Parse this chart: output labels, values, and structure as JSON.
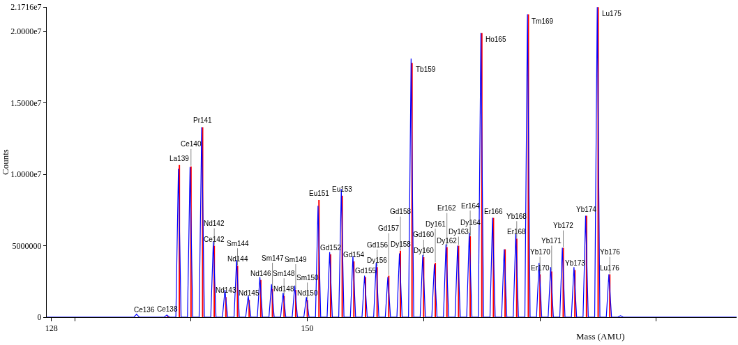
{
  "chart_data": {
    "type": "line",
    "xlabel": "Mass (AMU)",
    "ylabel": "Counts",
    "xlim": [
      127.6,
      186.9
    ],
    "xticks": [
      128,
      {
        "value": 130,
        "label": null
      },
      {
        "value": 140,
        "label": null
      },
      150,
      {
        "value": 160,
        "label": null
      },
      {
        "value": 170,
        "label": null
      },
      {
        "value": 180,
        "label": null
      }
    ],
    "ylim": [
      0,
      21716000
    ],
    "yticks": [
      0,
      5000000,
      {
        "value": 10000000,
        "label": "1.0000e7"
      },
      {
        "value": 15000000,
        "label": "1.5000e7"
      },
      {
        "value": 20000000,
        "label": "2.0000e7"
      },
      {
        "value": 21716000,
        "label": "2.1716e7"
      }
    ],
    "grid": false,
    "marker": "none",
    "line_style": "solid",
    "series": [
      {
        "color": "#0000ff",
        "x": [
          127.6,
          135.1,
          135.32,
          135.55,
          137.7,
          137.92,
          138.15,
          138.7,
          138.92,
          139.15,
          139.7,
          139.92,
          140.15,
          140.7,
          140.92,
          141.15,
          141.7,
          141.92,
          142.15,
          142.7,
          142.92,
          143.15,
          143.7,
          143.92,
          144.15,
          144.7,
          144.92,
          145.15,
          145.7,
          145.92,
          146.15,
          146.7,
          146.92,
          147.15,
          147.7,
          147.92,
          148.15,
          148.7,
          148.92,
          149.15,
          149.7,
          149.92,
          150.15,
          150.7,
          150.92,
          151.15,
          151.7,
          151.92,
          152.15,
          152.7,
          152.92,
          153.15,
          153.7,
          153.92,
          154.15,
          154.7,
          154.92,
          155.15,
          155.7,
          155.92,
          156.15,
          156.7,
          156.92,
          157.15,
          157.7,
          157.92,
          158.15,
          158.7,
          158.92,
          159.15,
          159.7,
          159.92,
          160.15,
          160.7,
          160.92,
          161.15,
          161.7,
          161.92,
          162.15,
          162.7,
          162.92,
          163.15,
          163.7,
          163.92,
          164.15,
          164.7,
          164.92,
          165.15,
          165.7,
          165.92,
          166.15,
          166.7,
          166.92,
          167.15,
          167.7,
          167.92,
          168.15,
          168.7,
          168.92,
          169.15,
          169.7,
          169.92,
          170.15,
          170.7,
          170.92,
          171.15,
          171.7,
          171.92,
          172.15,
          172.7,
          172.92,
          173.15,
          173.7,
          173.92,
          174.15,
          174.7,
          174.92,
          175.15,
          175.7,
          175.92,
          176.15,
          176.7,
          176.92,
          177.15,
          186.9
        ],
        "values": [
          0,
          0,
          200000,
          0,
          0,
          150000,
          0,
          0,
          10400000,
          0,
          0,
          10500000,
          0,
          0,
          13300000,
          0,
          0,
          5300000,
          0,
          0,
          1900000,
          0,
          0,
          4000000,
          0,
          0,
          1500000,
          0,
          0,
          2800000,
          0,
          0,
          2300000,
          0,
          0,
          1700000,
          0,
          0,
          2200000,
          0,
          0,
          1400000,
          0,
          0,
          7800000,
          0,
          0,
          4550000,
          0,
          0,
          8970000,
          0,
          0,
          4270000,
          0,
          0,
          2900000,
          0,
          0,
          3800000,
          0,
          0,
          2800000,
          0,
          0,
          4460000,
          0,
          0,
          18100000,
          0,
          0,
          4360000,
          0,
          0,
          3700000,
          0,
          0,
          5100000,
          0,
          0,
          5000000,
          0,
          0,
          5900000,
          0,
          0,
          19900000,
          0,
          0,
          6950000,
          0,
          0,
          4750000,
          0,
          0,
          5850000,
          0,
          0,
          21200000,
          0,
          0,
          3800000,
          0,
          0,
          3500000,
          0,
          0,
          4850000,
          0,
          0,
          3500000,
          0,
          0,
          7100000,
          0,
          0,
          21700000,
          0,
          0,
          3000000,
          0,
          0,
          100000,
          0,
          0
        ]
      },
      {
        "type": "bar",
        "color": "#ff0000",
        "x": [
          138,
          139,
          140,
          141,
          142,
          143,
          144,
          145,
          146,
          147,
          148,
          149,
          150,
          151,
          152,
          153,
          154,
          155,
          156,
          157,
          158,
          159,
          160,
          161,
          162,
          163,
          164,
          165,
          166,
          167,
          168,
          169,
          170,
          171,
          172,
          173,
          174,
          175,
          176
        ],
        "values": [
          100000,
          10650000,
          10550000,
          13300000,
          5000000,
          1400000,
          3600000,
          1200000,
          2600000,
          2000000,
          1500000,
          1900000,
          1200000,
          8200000,
          4400000,
          8500000,
          3900000,
          2800000,
          3500000,
          2900000,
          4650000,
          17800000,
          4200000,
          3800000,
          4900000,
          5000000,
          5660000,
          19900000,
          6950000,
          4750000,
          5500000,
          21200000,
          3000000,
          3200000,
          4850000,
          3300000,
          7100000,
          21700000,
          3000000
        ]
      }
    ],
    "annotations": [
      {
        "text": "Ce136",
        "x": 136,
        "y": 50000
      },
      {
        "text": "Ce138",
        "x": 138,
        "y": 100000
      },
      {
        "text": "La139",
        "x": 139,
        "y": 10650000
      },
      {
        "text": "Ce140",
        "x": 140,
        "y": 10550000
      },
      {
        "text": "Pr141",
        "x": 141,
        "y": 13300000
      },
      {
        "text": "Ce142",
        "x": 142,
        "y": 5000000
      },
      {
        "text": "Nd142",
        "x": 142,
        "y": 5000000
      },
      {
        "text": "Nd143",
        "x": 143,
        "y": 1400000
      },
      {
        "text": "Nd144",
        "x": 144,
        "y": 3600000
      },
      {
        "text": "Sm144",
        "x": 144,
        "y": 3600000
      },
      {
        "text": "Nd145",
        "x": 145,
        "y": 1200000
      },
      {
        "text": "Nd146",
        "x": 146,
        "y": 2600000
      },
      {
        "text": "Sm147",
        "x": 147,
        "y": 2000000
      },
      {
        "text": "Nd148",
        "x": 148,
        "y": 1500000
      },
      {
        "text": "Sm148",
        "x": 148,
        "y": 1500000
      },
      {
        "text": "Sm149",
        "x": 149,
        "y": 1900000
      },
      {
        "text": "Nd150",
        "x": 150,
        "y": 1200000
      },
      {
        "text": "Sm150",
        "x": 150,
        "y": 1200000
      },
      {
        "text": "Eu151",
        "x": 151,
        "y": 8200000
      },
      {
        "text": "Gd152",
        "x": 152,
        "y": 4400000
      },
      {
        "text": "Eu153",
        "x": 153,
        "y": 8500000
      },
      {
        "text": "Gd154",
        "x": 154,
        "y": 3900000
      },
      {
        "text": "Gd155",
        "x": 155,
        "y": 2800000
      },
      {
        "text": "Dy156",
        "x": 156,
        "y": 3500000
      },
      {
        "text": "Gd156",
        "x": 156,
        "y": 3500000
      },
      {
        "text": "Gd157",
        "x": 157,
        "y": 2900000
      },
      {
        "text": "Dy158",
        "x": 158,
        "y": 4650000
      },
      {
        "text": "Gd158",
        "x": 158,
        "y": 4650000
      },
      {
        "text": "Tb159",
        "x": 159,
        "y": 17800000
      },
      {
        "text": "Dy160",
        "x": 160,
        "y": 4200000
      },
      {
        "text": "Gd160",
        "x": 160,
        "y": 4200000
      },
      {
        "text": "Dy161",
        "x": 161,
        "y": 3800000
      },
      {
        "text": "Dy162",
        "x": 162,
        "y": 4900000
      },
      {
        "text": "Er162",
        "x": 162,
        "y": 4900000
      },
      {
        "text": "Dy163",
        "x": 163,
        "y": 5000000
      },
      {
        "text": "Dy164",
        "x": 164,
        "y": 5660000
      },
      {
        "text": "Er164",
        "x": 164,
        "y": 5660000
      },
      {
        "text": "Ho165",
        "x": 165,
        "y": 19900000
      },
      {
        "text": "Er166",
        "x": 166,
        "y": 6950000
      },
      {
        "text": "Er168",
        "x": 168,
        "y": 5500000
      },
      {
        "text": "Yb168",
        "x": 168,
        "y": 5500000
      },
      {
        "text": "Tm169",
        "x": 169,
        "y": 21200000
      },
      {
        "text": "Er170",
        "x": 170,
        "y": 3000000
      },
      {
        "text": "Yb170",
        "x": 170,
        "y": 3000000
      },
      {
        "text": "Yb171",
        "x": 171,
        "y": 3200000
      },
      {
        "text": "Yb172",
        "x": 172,
        "y": 4850000
      },
      {
        "text": "Yb173",
        "x": 173,
        "y": 3300000
      },
      {
        "text": "Yb174",
        "x": 174,
        "y": 7100000
      },
      {
        "text": "Lu175",
        "x": 175,
        "y": 21700000
      },
      {
        "text": "Lu176",
        "x": 176,
        "y": 3000000
      },
      {
        "text": "Yb176",
        "x": 176,
        "y": 3000000
      }
    ]
  }
}
